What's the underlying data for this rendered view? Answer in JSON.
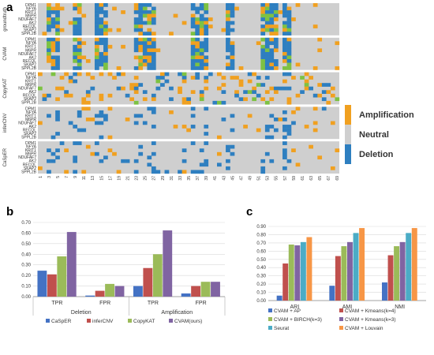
{
  "panel_labels": {
    "a": "a",
    "b": "b",
    "c": "c"
  },
  "colors": {
    "amplification": "#f0a020",
    "neutral": "#cfcfcf",
    "deletion": "#2e7fc0",
    "extra_green": "#7dc242",
    "caseper": "#4472c4",
    "infercnv": "#c0504d",
    "copykat": "#9bbb59",
    "cvam": "#8064a2",
    "c_ap": "#4472c4",
    "c_km4": "#c0504d",
    "c_birch": "#9bbb59",
    "c_km3": "#8064a2",
    "c_seurat": "#4bacc6",
    "c_louvain": "#f79646"
  },
  "chart_data": [
    {
      "type": "heatmap",
      "panel": "a",
      "row_groups": [
        {
          "name": "groundtruth",
          "rows": [
            "DPM1",
            "NFYA",
            "KRIT1",
            "M6PR",
            "NDUFAF7",
            "AK2",
            "RECQL",
            "SKAP2",
            "SPPL2B"
          ]
        },
        {
          "name": "CVAM",
          "rows": [
            "DPM1",
            "NFYA",
            "KRIT1",
            "M6PR",
            "NDUFAF7",
            "AK2",
            "RECQL",
            "SKAP2",
            "SPPL2B"
          ]
        },
        {
          "name": "CopyKAT",
          "rows": [
            "DPM1",
            "NFYA",
            "KRIT1",
            "M6PR",
            "NDUFAF7",
            "AK2",
            "RECQL",
            "SKAP2",
            "SPPL2B"
          ]
        },
        {
          "name": "inferCNV",
          "rows": [
            "DPM1",
            "NFYA",
            "KRIT1",
            "M6PR",
            "NDUFAF7",
            "AK2",
            "RECQL",
            "SKAP2",
            "SPPL2B"
          ]
        },
        {
          "name": "CaSpER",
          "rows": [
            "DPM1",
            "NFYA",
            "KRIT1",
            "M6PR",
            "NDUFAF7",
            "AK2",
            "RECQL",
            "SKAP2",
            "SPPL2B"
          ]
        }
      ],
      "x_ticks": [
        "1",
        "3",
        "5",
        "7",
        "9",
        "11",
        "13",
        "15",
        "17",
        "19",
        "21",
        "23",
        "25",
        "27",
        "29",
        "31",
        "33",
        "35",
        "37",
        "39",
        "41",
        "43",
        "45",
        "47",
        "49",
        "51",
        "53",
        "55",
        "57",
        "59",
        "61",
        "63",
        "65",
        "67",
        "69"
      ],
      "legend": [
        "Amplification",
        "Neutral",
        "Deletion"
      ],
      "legend_placement": "right"
    },
    {
      "type": "bar",
      "panel": "b",
      "categories": [
        "TPR",
        "FPR",
        "TPR",
        "FPR"
      ],
      "groups": [
        "Deletion",
        "Amplification"
      ],
      "series": [
        {
          "name": "CaSpER",
          "values": [
            0.245,
            0.01,
            0.1,
            0.03
          ]
        },
        {
          "name": "inferCNV",
          "values": [
            0.21,
            0.055,
            0.27,
            0.1
          ]
        },
        {
          "name": "CopyKAT",
          "values": [
            0.38,
            0.12,
            0.4,
            0.14
          ]
        },
        {
          "name": "CVAM(ours)",
          "values": [
            0.61,
            0.1,
            0.625,
            0.14
          ]
        }
      ],
      "ylim": [
        0,
        0.7
      ],
      "yticks": [
        "0.00",
        "0.10",
        "0.20",
        "0.30",
        "0.40",
        "0.50",
        "0.60",
        "0.70"
      ],
      "legend_placement": "bottom",
      "grid": true
    },
    {
      "type": "bar",
      "panel": "c",
      "categories": [
        "ARI",
        "AMI",
        "NMI"
      ],
      "series": [
        {
          "name": "CVAM + AP",
          "values": [
            0.06,
            0.18,
            0.22
          ]
        },
        {
          "name": "CVAM + Kmeans(k=4)",
          "values": [
            0.45,
            0.54,
            0.55
          ]
        },
        {
          "name": "CVAM + BIRCH(k=3)",
          "values": [
            0.68,
            0.66,
            0.66
          ]
        },
        {
          "name": "CVAM + Kmeans(k=3)",
          "values": [
            0.67,
            0.71,
            0.71
          ]
        },
        {
          "name": "Seurat",
          "values": [
            0.71,
            0.82,
            0.82
          ]
        },
        {
          "name": "CVAM + Louvain",
          "values": [
            0.77,
            0.88,
            0.88
          ]
        }
      ],
      "ylim": [
        0,
        0.9
      ],
      "yticks": [
        "0.00",
        "0.10",
        "0.20",
        "0.30",
        "0.40",
        "0.50",
        "0.60",
        "0.70",
        "0.80",
        "0.90"
      ],
      "legend_placement": "bottom",
      "grid": true
    }
  ]
}
